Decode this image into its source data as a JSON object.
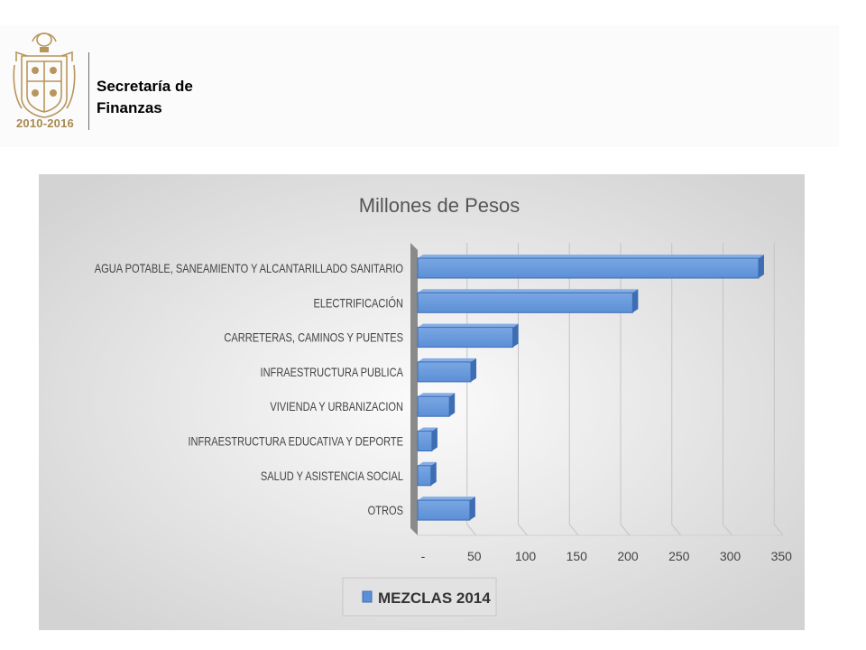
{
  "header": {
    "emblem_years": "2010-2016",
    "dept_line1": "Secretaría de",
    "dept_line2": "Finanzas"
  },
  "colors": {
    "bar_fill": "#5b8fd6",
    "bar_edge": "#3d6db3",
    "emblem": "#b8965a"
  },
  "chart_data": {
    "type": "bar",
    "orientation": "horizontal",
    "title": "Millones de Pesos",
    "categories": [
      "AGUA POTABLE, SANEAMIENTO Y ALCANTARILLADO SANITARIO",
      "ELECTRIFICACIÓN",
      "CARRETERAS, CAMINOS Y PUENTES",
      "INFRAESTRUCTURA PUBLICA",
      "VIVIENDA Y URBANIZACION",
      "INFRAESTRUCTURA EDUCATIVA Y DEPORTE",
      "SALUD Y ASISTENCIA  SOCIAL",
      "OTROS"
    ],
    "series": [
      {
        "name": "MEZCLAS 2014",
        "values": [
          333,
          210,
          93,
          52,
          31,
          14,
          13,
          51
        ]
      }
    ],
    "xlim": [
      0,
      350
    ],
    "xticks": [
      {
        "value": 0,
        "label": "-"
      },
      {
        "value": 50,
        "label": "50"
      },
      {
        "value": 100,
        "label": "100"
      },
      {
        "value": 150,
        "label": "150"
      },
      {
        "value": 200,
        "label": "200"
      },
      {
        "value": 250,
        "label": "250"
      },
      {
        "value": 300,
        "label": "300"
      },
      {
        "value": 350,
        "label": "350"
      }
    ],
    "grid": true,
    "legend_position": "bottom"
  }
}
